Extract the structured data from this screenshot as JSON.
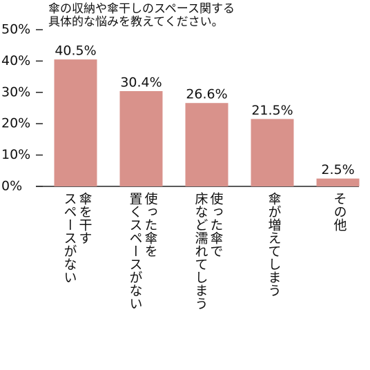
{
  "chart_data": {
    "type": "bar",
    "title": "傘の収納や傘干しのスペース関する\n具体的な悩みを教えてください。",
    "categories": [
      "傘を干す\nスペースがない",
      "使った傘を\n置くスペースがない",
      "使った傘で\n床など濡れてしまう",
      "傘が増えてしまう",
      "その他"
    ],
    "values": [
      40.5,
      30.4,
      26.6,
      21.5,
      2.5
    ],
    "value_labels": [
      "40.5%",
      "30.4%",
      "26.6%",
      "21.5%",
      "2.5%"
    ],
    "color": "#d9928b",
    "ylim": [
      0,
      50
    ],
    "yticks": [
      {
        "value": 0,
        "label": "0%"
      },
      {
        "value": 10,
        "label": "10%"
      },
      {
        "value": 20,
        "label": "20%"
      },
      {
        "value": 30,
        "label": "30%"
      },
      {
        "value": 40,
        "label": "40%"
      },
      {
        "value": 50,
        "label": "50%"
      }
    ]
  }
}
